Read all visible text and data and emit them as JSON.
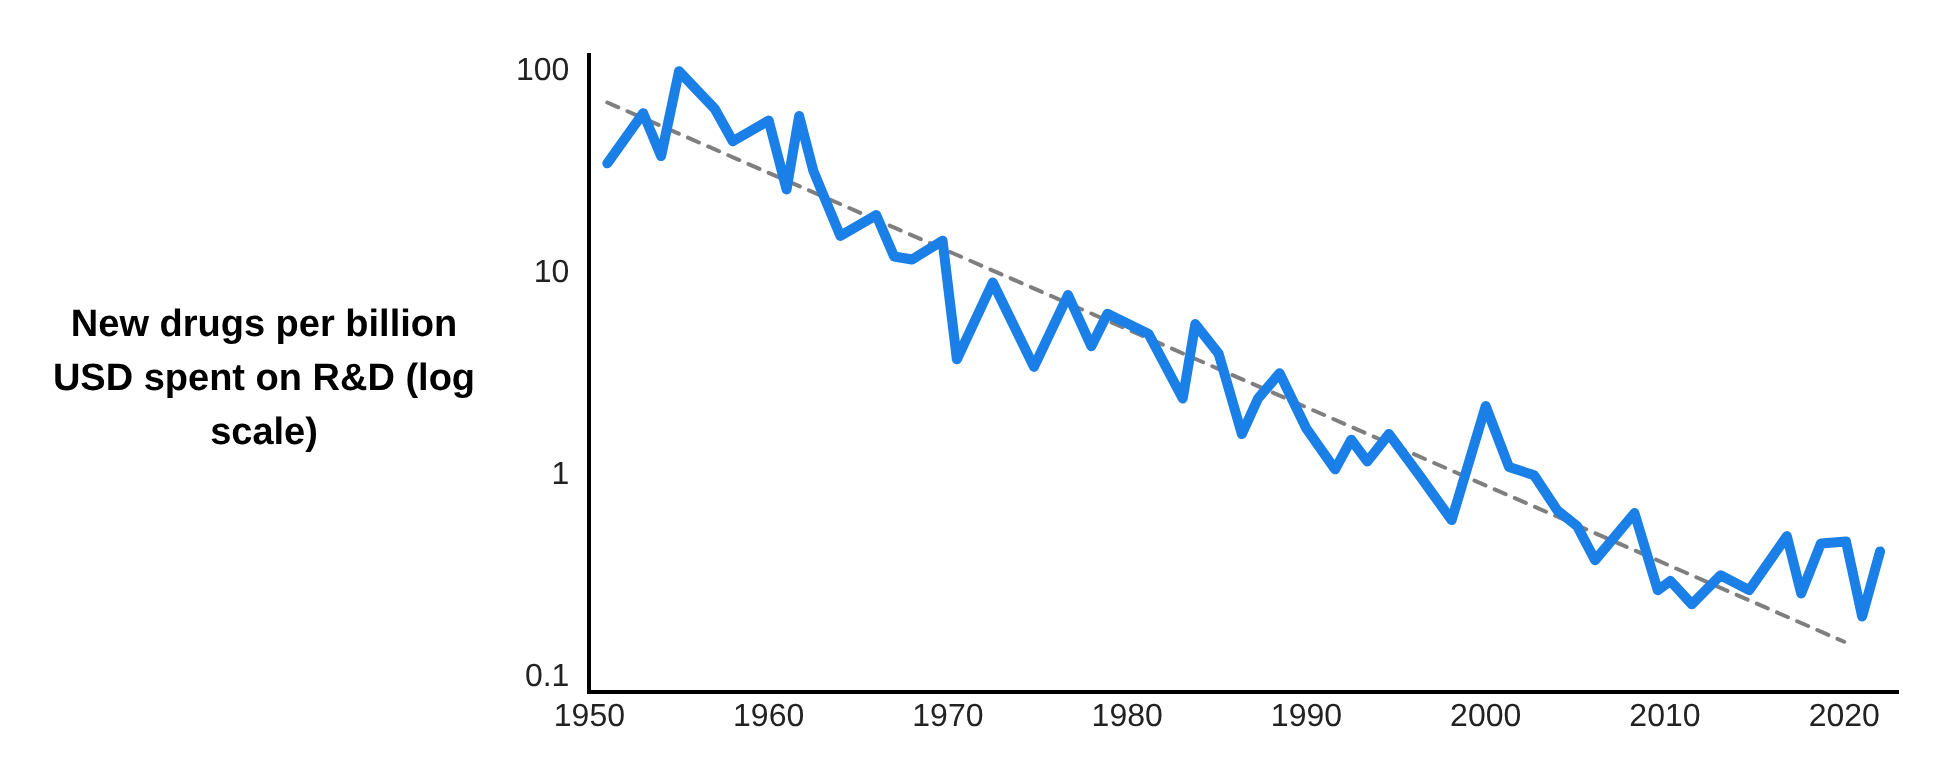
{
  "chart_data": {
    "type": "line",
    "ylabel": "New drugs per billion USD spent on R&D (log scale)",
    "log": "y",
    "grid": false,
    "legend": false,
    "marker": "none",
    "xlim": [
      1950,
      2023
    ],
    "xticks": [
      1950,
      1960,
      1970,
      1980,
      1990,
      2000,
      2010,
      2020
    ],
    "ylim": [
      0.085,
      120
    ],
    "yticks": [
      0.1,
      1,
      10,
      100
    ],
    "series": [
      {
        "color": "#1a7fe6",
        "line_style": "solid",
        "x": [
          1951,
          1953,
          1954,
          1955,
          1957,
          1958,
          1960,
          1961,
          1961.7,
          1962.5,
          1963,
          1964,
          1966,
          1967,
          1968,
          1969.7,
          1970.5,
          1972.5,
          1974.8,
          1976.7,
          1978,
          1978.9,
          1981.2,
          1983.1,
          1983.8,
          1985.1,
          1986.4,
          1987.3,
          1988.5,
          1990,
          1991.6,
          1992.5,
          1993.4,
          1994.6,
          1996.3,
          1998.1,
          2000,
          2001.3,
          2002.7,
          2004,
          2005.1,
          2006.1,
          2008.3,
          2009.6,
          2010.3,
          2011.5,
          2013.1,
          2014.7,
          2016.8,
          2017.6,
          2018.7,
          2020.1,
          2021,
          2022
        ],
        "values": [
          35,
          62,
          38,
          100,
          65,
          45,
          57,
          26,
          60,
          32,
          25,
          15.3,
          19.4,
          12.1,
          11.7,
          14.5,
          3.75,
          9.0,
          3.44,
          7.8,
          4.35,
          6.3,
          5.0,
          2.4,
          5.6,
          4.0,
          1.6,
          2.4,
          3.2,
          1.7,
          1.07,
          1.5,
          1.17,
          1.6,
          1.0,
          0.6,
          2.2,
          1.1,
          1.0,
          0.67,
          0.56,
          0.38,
          0.65,
          0.27,
          0.3,
          0.23,
          0.32,
          0.27,
          0.5,
          0.26,
          0.46,
          0.47,
          0.2,
          0.42
        ]
      },
      {
        "color": "#7f7f7f",
        "line_style": "dashed",
        "x": [
          1951,
          2020
        ],
        "values": [
          70,
          0.15
        ]
      }
    ]
  }
}
